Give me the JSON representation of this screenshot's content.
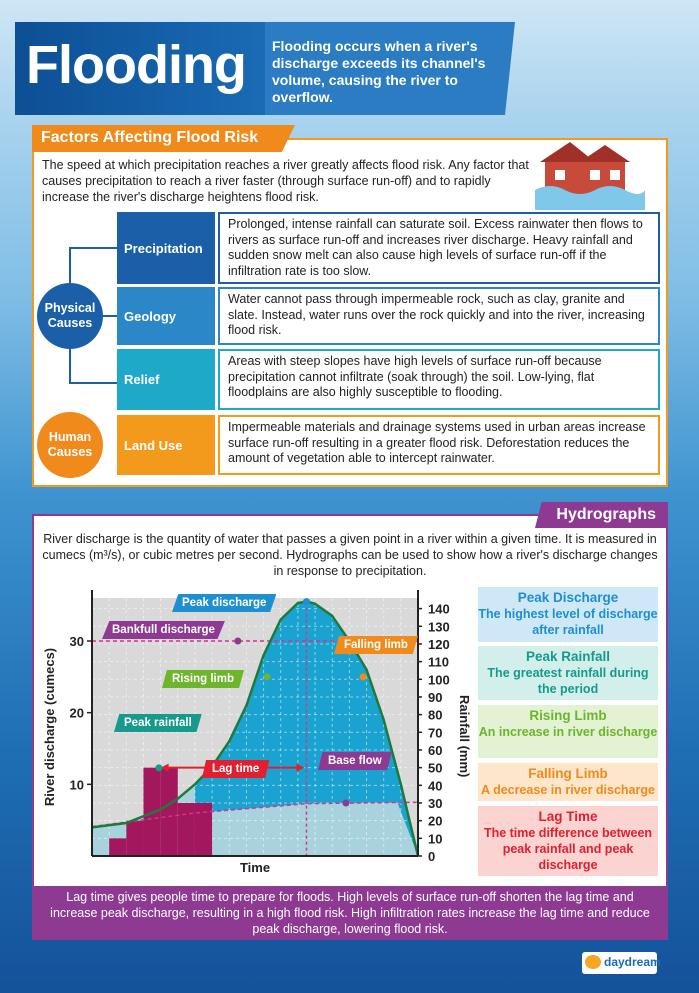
{
  "header": {
    "title": "Flooding",
    "intro": "Flooding occurs when a river's discharge exceeds its channel's volume, causing the river to overflow."
  },
  "factors": {
    "heading": "Factors Affecting Flood Risk",
    "intro": "The speed at which precipitation reaches a river greatly affects flood risk. Any factor that causes precipitation to reach a river faster (through surface run-off) and to rapidly increase the river's discharge heightens flood risk.",
    "physical_label": "Physical Causes",
    "human_label": "Human Causes",
    "rows": [
      {
        "label": "Precipitation",
        "text": "Prolonged, intense rainfall can saturate soil. Excess rainwater then flows to rivers as surface run-off and increases river discharge. Heavy rainfall and sudden snow melt can also cause high levels of surface run-off if the infiltration rate is too slow."
      },
      {
        "label": "Geology",
        "text": "Water cannot pass through impermeable rock, such as clay, granite and slate. Instead, water runs over the rock quickly and into the river, increasing flood risk."
      },
      {
        "label": "Relief",
        "text": "Areas with steep slopes have high levels of surface run-off because precipitation cannot infiltrate (soak through) the soil. Low-lying, flat floodplains are also highly susceptible to flooding."
      },
      {
        "label": "Land Use",
        "text": "Impermeable materials and drainage systems used in urban areas increase surface run-off resulting in a greater flood risk. Deforestation reduces the amount of vegetation able to intercept rainwater."
      }
    ]
  },
  "hydro": {
    "heading": "Hydrographs",
    "intro": "River discharge is the quantity of water that passes a given point in a river within a given time. It is measured in cumecs (m³/s), or cubic metres per second. Hydrographs can be used to show how a river's discharge changes in response to precipitation.",
    "info": [
      {
        "title": "Peak Discharge",
        "text": "The highest level of discharge after rainfall",
        "color": "#1e8fd0",
        "bg": "#cfe8f7"
      },
      {
        "title": "Peak Rainfall",
        "text": "The greatest rainfall during the period",
        "color": "#169a8c",
        "bg": "#d3efec"
      },
      {
        "title": "Rising Limb",
        "text": "An increase in river discharge",
        "color": "#6cb52d",
        "bg": "#e3f2d3"
      },
      {
        "title": "Falling Limb",
        "text": "A decrease in river discharge",
        "color": "#f08a1a",
        "bg": "#fde6cc"
      },
      {
        "title": "Lag Time",
        "text": "The time difference between peak rainfall and peak discharge",
        "color": "#e0202e",
        "bg": "#fbd3d0"
      }
    ],
    "footer": "Lag time gives people time to prepare for floods. High levels of surface run-off shorten the lag time and increase peak discharge, resulting in a high flood risk. High infiltration rates increase the lag time and reduce peak discharge, lowering flood risk."
  },
  "chart_data": {
    "type": "hydrograph",
    "xlabel": "Time",
    "ylabel": "River discharge (cumecs)",
    "y2label": "Rainfall (mm)",
    "ylim": [
      0,
      36
    ],
    "yticks": [
      10,
      20,
      30
    ],
    "y2lim": [
      0,
      146
    ],
    "y2ticks": [
      0,
      10,
      20,
      30,
      40,
      50,
      60,
      70,
      80,
      90,
      100,
      110,
      120,
      130,
      140
    ],
    "grid": true,
    "rainfall_bars_mm": [
      10,
      20,
      50,
      50,
      30,
      30
    ],
    "discharge": [
      [
        0,
        4
      ],
      [
        2,
        4.6
      ],
      [
        4,
        6.5
      ],
      [
        5,
        8
      ],
      [
        6,
        10
      ],
      [
        7,
        12.5
      ],
      [
        8,
        16
      ],
      [
        9,
        21
      ],
      [
        10,
        28
      ],
      [
        11,
        33
      ],
      [
        12,
        35.3
      ],
      [
        12.5,
        35.5
      ],
      [
        13,
        35.2
      ],
      [
        14,
        33.5
      ],
      [
        15,
        30
      ],
      [
        16,
        26
      ],
      [
        17,
        19
      ],
      [
        18,
        10
      ],
      [
        19,
        0
      ]
    ],
    "baseflow": [
      [
        0,
        4.1
      ],
      [
        6,
        6
      ],
      [
        12.5,
        7.3
      ],
      [
        19,
        7.5
      ]
    ],
    "bankfull": 30,
    "peak_time": 12.5,
    "annotations": {
      "peak_discharge": "Peak discharge",
      "bankfull": "Bankfull discharge",
      "falling_limb": "Falling limb",
      "rising_limb": "Rising limb",
      "peak_rainfall": "Peak rainfall",
      "lag_time": "Lag time",
      "base_flow": "Base flow"
    },
    "colors": {
      "curve": "#1f7a3a",
      "storm_flow": "#1aa3d0",
      "base": "#a9d2df",
      "rain": "#a3175f",
      "bg": "#d9d9d9"
    }
  },
  "logo": {
    "text": "daydream"
  }
}
